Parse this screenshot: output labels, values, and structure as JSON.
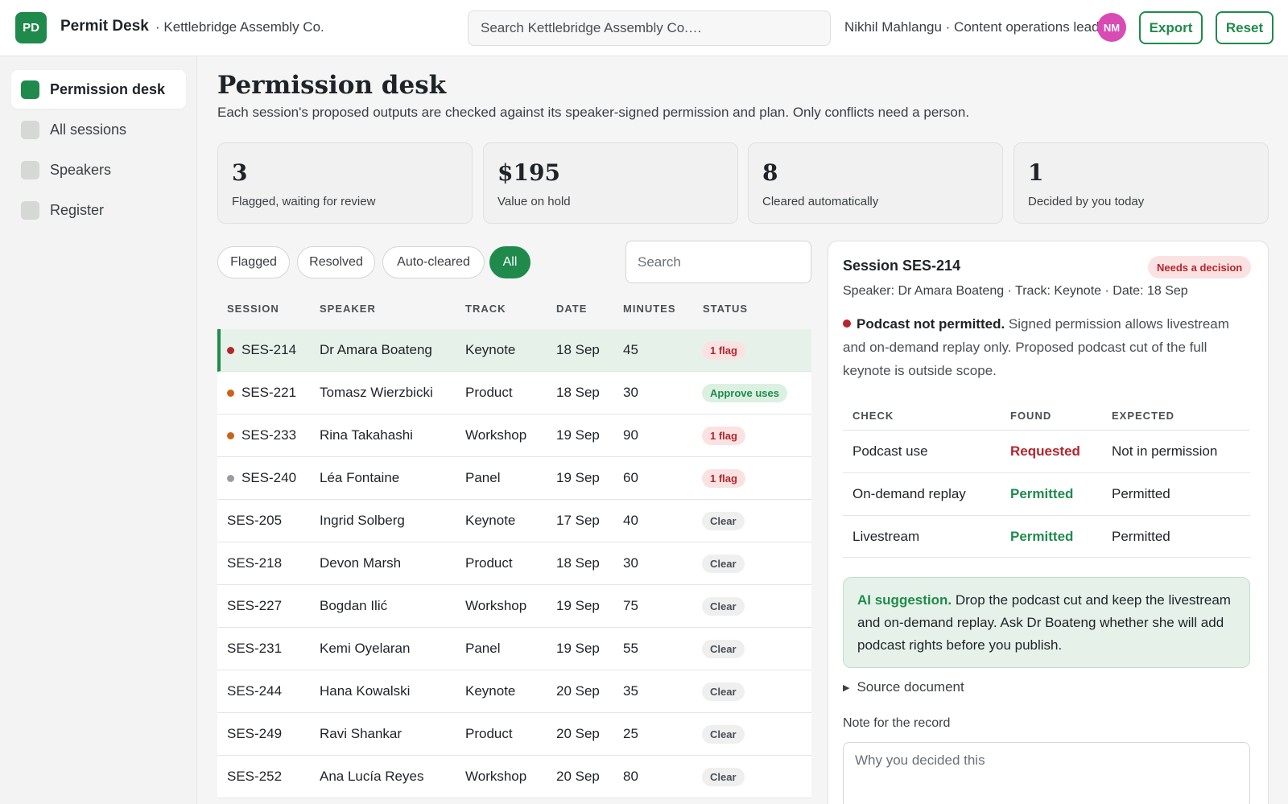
{
  "header": {
    "logo_text": "PD",
    "app_name": "Permit Desk",
    "org": "· Kettlebridge Assembly Co.",
    "search_placeholder": "Search Kettlebridge Assembly Co.…",
    "user": "Nikhil Mahlangu · Content operations lead",
    "avatar_initials": "NM",
    "export_label": "Export",
    "reset_label": "Reset"
  },
  "sidebar": {
    "items": [
      {
        "label": "Permission desk",
        "active": true
      },
      {
        "label": "All sessions",
        "active": false
      },
      {
        "label": "Speakers",
        "active": false
      },
      {
        "label": "Register",
        "active": false
      }
    ]
  },
  "main": {
    "title": "Permission desk",
    "subtitle": "Each session's proposed outputs are checked against its speaker-signed permission and plan. Only conflicts need a person.",
    "stats": [
      {
        "value": "3",
        "label": "Flagged, waiting for review"
      },
      {
        "value": "$195",
        "label": "Value on hold"
      },
      {
        "value": "8",
        "label": "Cleared automatically"
      },
      {
        "value": "1",
        "label": "Decided by you today"
      }
    ],
    "filters": [
      "Flagged",
      "Resolved",
      "Auto-cleared",
      "All"
    ],
    "active_filter": "All",
    "table_search_placeholder": "Search",
    "columns": [
      "SESSION",
      "SPEAKER",
      "TRACK",
      "DATE",
      "MINUTES",
      "STATUS"
    ],
    "rows": [
      {
        "session": "SES-214",
        "speaker": "Dr Amara Boateng",
        "track": "Keynote",
        "date": "18 Sep",
        "minutes": "45",
        "status": "1 flag",
        "status_kind": "flag",
        "dot": "#b3262c",
        "selected": true
      },
      {
        "session": "SES-221",
        "speaker": "Tomasz Wierzbicki",
        "track": "Product",
        "date": "18 Sep",
        "minutes": "30",
        "status": "Approve uses",
        "status_kind": "approve",
        "dot": "#c8641a",
        "selected": false
      },
      {
        "session": "SES-233",
        "speaker": "Rina Takahashi",
        "track": "Workshop",
        "date": "19 Sep",
        "minutes": "90",
        "status": "1 flag",
        "status_kind": "flag",
        "dot": "#c8641a",
        "selected": false
      },
      {
        "session": "SES-240",
        "speaker": "Léa Fontaine",
        "track": "Panel",
        "date": "19 Sep",
        "minutes": "60",
        "status": "1 flag",
        "status_kind": "flag",
        "dot": "#9a9ca3",
        "selected": false
      },
      {
        "session": "SES-205",
        "speaker": "Ingrid Solberg",
        "track": "Keynote",
        "date": "17 Sep",
        "minutes": "40",
        "status": "Clear",
        "status_kind": "clear",
        "dot": "",
        "selected": false
      },
      {
        "session": "SES-218",
        "speaker": "Devon Marsh",
        "track": "Product",
        "date": "18 Sep",
        "minutes": "30",
        "status": "Clear",
        "status_kind": "clear",
        "dot": "",
        "selected": false
      },
      {
        "session": "SES-227",
        "speaker": "Bogdan Ilić",
        "track": "Workshop",
        "date": "19 Sep",
        "minutes": "75",
        "status": "Clear",
        "status_kind": "clear",
        "dot": "",
        "selected": false
      },
      {
        "session": "SES-231",
        "speaker": "Kemi Oyelaran",
        "track": "Panel",
        "date": "19 Sep",
        "minutes": "55",
        "status": "Clear",
        "status_kind": "clear",
        "dot": "",
        "selected": false
      },
      {
        "session": "SES-244",
        "speaker": "Hana Kowalski",
        "track": "Keynote",
        "date": "20 Sep",
        "minutes": "35",
        "status": "Clear",
        "status_kind": "clear",
        "dot": "",
        "selected": false
      },
      {
        "session": "SES-249",
        "speaker": "Ravi Shankar",
        "track": "Product",
        "date": "20 Sep",
        "minutes": "25",
        "status": "Clear",
        "status_kind": "clear",
        "dot": "",
        "selected": false
      },
      {
        "session": "SES-252",
        "speaker": "Ana Lucía Reyes",
        "track": "Workshop",
        "date": "20 Sep",
        "minutes": "80",
        "status": "Clear",
        "status_kind": "clear",
        "dot": "",
        "selected": false
      }
    ]
  },
  "detail": {
    "title": "Session SES-214",
    "badge": "Needs a decision",
    "meta": "Speaker: Dr Amara Boateng · Track: Keynote · Date: 18 Sep",
    "issue_head": "Podcast not permitted.",
    "issue_body": " Signed permission allows livestream and on-demand replay only. Proposed podcast cut of the full keynote is outside scope.",
    "columns": [
      "CHECK",
      "FOUND",
      "EXPECTED"
    ],
    "checks": [
      {
        "check": "Podcast use",
        "found": "Requested",
        "found_kind": "red",
        "expected": "Not in permission"
      },
      {
        "check": "On-demand replay",
        "found": "Permitted",
        "found_kind": "green",
        "expected": "Permitted"
      },
      {
        "check": "Livestream",
        "found": "Permitted",
        "found_kind": "green",
        "expected": "Permitted"
      }
    ],
    "ai_label": "AI suggestion.",
    "ai_text": " Drop the podcast cut and keep the livestream and on-demand replay. Ask Dr Boateng whether she will add podcast rights before you publish.",
    "source_label": "Source document",
    "note_label": "Note for the record",
    "note_placeholder": "Why you decided this"
  },
  "colors": {
    "accent": "#1f8a4c",
    "danger": "#b3262c",
    "warning_dot": "#c8641a",
    "avatar": "#d94bb4"
  }
}
